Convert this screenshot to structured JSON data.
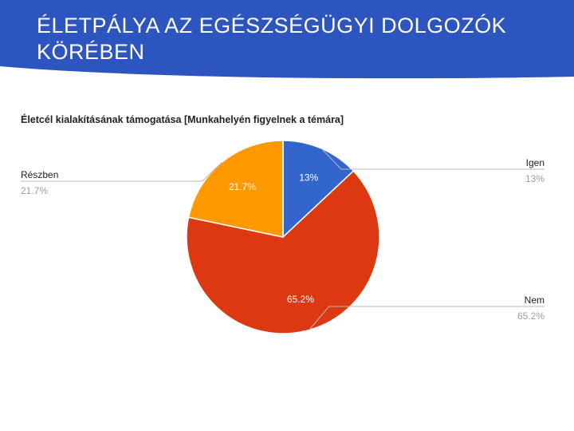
{
  "slide": {
    "title": "ÉLETPÁLYA AZ EGÉSZSÉGÜGYI DOLGOZÓK KÖRÉBEN",
    "header_color": "#2d55c0"
  },
  "chart_data": {
    "type": "pie",
    "title": "Életcél kialakításának támogatása [Munkahelyén figyelnek a témára]",
    "slices": [
      {
        "label": "Igen",
        "value": 13.0,
        "display": "13%",
        "color": "#3366cc"
      },
      {
        "label": "Nem",
        "value": 65.2,
        "display": "65.2%",
        "color": "#dc3912"
      },
      {
        "label": "Részben",
        "value": 21.7,
        "display": "21.7%",
        "color": "#ff9900"
      }
    ]
  }
}
